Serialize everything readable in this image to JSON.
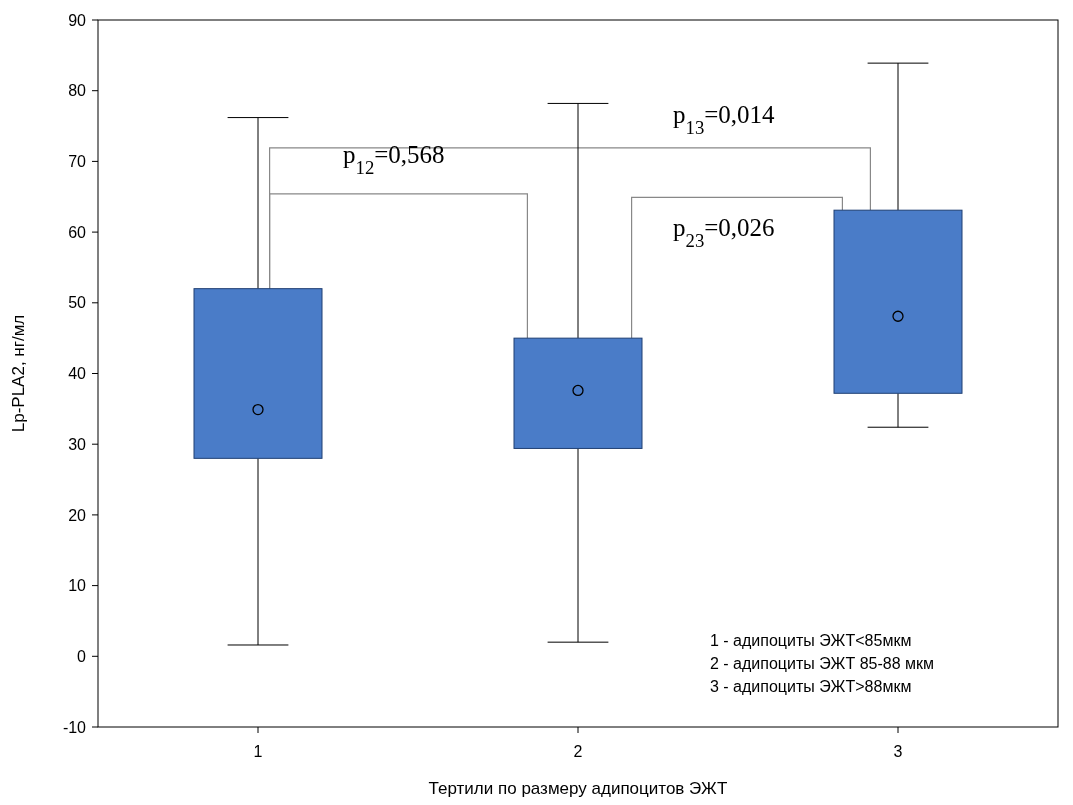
{
  "chart_data": {
    "type": "box",
    "xlabel": "Тертили по размеру адипоцитов ЭЖТ",
    "ylabel": "Lp-PLA2, нг/мл",
    "categories": [
      "1",
      "2",
      "3"
    ],
    "color": "#4a7cc8",
    "boxes": [
      {
        "low": 1.6,
        "q1": 28.0,
        "median": 34.9,
        "q3": 52.0,
        "high": 76.2
      },
      {
        "low": 2.0,
        "q1": 29.4,
        "median": 37.6,
        "q3": 45.0,
        "high": 78.2
      },
      {
        "low": 32.4,
        "q1": 37.2,
        "median": 48.1,
        "q3": 63.1,
        "high": 83.9
      }
    ],
    "ylim": [
      -10,
      90
    ],
    "yticks": [
      -10,
      0,
      10,
      20,
      30,
      40,
      50,
      60,
      70,
      80,
      90
    ],
    "grid": false,
    "annotations": [
      "p$_{12}$=0,568",
      "p$_{13}$=0,014",
      "p$_{23}$=0,026",
      "1 - адипоциты ЭЖТ<85мкм",
      "2 - адипоциты ЭЖТ 85-88 мкм",
      "3 - адипоциты ЭЖТ>88мкм"
    ]
  }
}
